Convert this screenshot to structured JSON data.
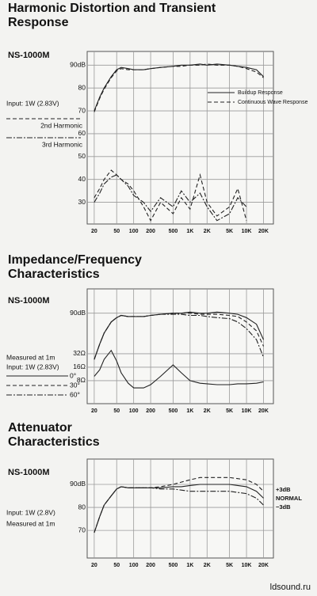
{
  "chart_data": [
    {
      "type": "line",
      "title": "Harmonic Distortion and Transient Response",
      "model": "NS-1000M",
      "notes": [
        "Input: 1W (2.83V)"
      ],
      "xlog": true,
      "xlim": [
        15,
        30000
      ],
      "xticks": [
        20,
        50,
        100,
        200,
        500,
        {
          "value": 1000,
          "label": "1K"
        },
        {
          "value": 2000,
          "label": "2K"
        },
        {
          "value": 5000,
          "label": "5K"
        },
        {
          "value": 10000,
          "label": "10K"
        },
        {
          "value": 20000,
          "label": "20K"
        }
      ],
      "ylim": [
        20.5,
        96
      ],
      "yticks": [
        {
          "value": 90,
          "label": "90dB"
        },
        80,
        70,
        60,
        50,
        40,
        30
      ],
      "grid": true,
      "x": [
        20,
        25,
        30,
        40,
        50,
        60,
        80,
        100,
        150,
        200,
        300,
        500,
        700,
        1000,
        1500,
        2000,
        3000,
        5000,
        7000,
        10000,
        15000,
        20000
      ],
      "series": [
        {
          "name": "Buildup Response",
          "color": "#222222",
          "dash": "solid",
          "legend": "inside",
          "values": [
            70,
            76,
            80,
            85,
            88,
            89,
            88.5,
            88,
            88,
            88.5,
            89,
            89.5,
            90,
            90,
            90.5,
            90,
            90.5,
            90,
            89.5,
            89,
            88,
            85
          ]
        },
        {
          "name": "Continuous Wave Response",
          "color": "#222222",
          "dash": "dashed",
          "legend": "inside",
          "values": [
            69.5,
            75.5,
            79.5,
            84.5,
            87.5,
            88.5,
            88,
            88,
            88,
            88.5,
            89,
            89.5,
            89.5,
            90,
            90,
            90.5,
            90,
            90,
            89.5,
            88.5,
            87,
            84.5
          ]
        },
        {
          "name": "2nd Harmonic",
          "color": "#222222",
          "dash": "dashed",
          "legend": "left",
          "values": [
            32,
            36,
            40,
            44,
            42,
            40,
            38,
            35,
            28,
            22,
            30,
            25,
            32,
            27,
            42,
            30,
            24,
            28,
            36,
            22,
            null,
            null
          ]
        },
        {
          "name": "3rd Harmonic",
          "color": "#222222",
          "dash": "dashdot",
          "legend": "left",
          "values": [
            30,
            34,
            38,
            41,
            42,
            40,
            37,
            33,
            30,
            26,
            32,
            28,
            35,
            30,
            34,
            28,
            22,
            25,
            32,
            28,
            null,
            null
          ]
        }
      ]
    },
    {
      "type": "line",
      "title": "Impedance/Frequency Characteristics",
      "model": "NS-1000M",
      "notes": [
        "Measured at 1m",
        "Input: 1W (2.83V)"
      ],
      "xlog": true,
      "xlim": [
        15,
        30000
      ],
      "xticks": [
        20,
        50,
        100,
        200,
        500,
        {
          "value": 1000,
          "label": "1K"
        },
        {
          "value": 2000,
          "label": "2K"
        },
        {
          "value": 5000,
          "label": "5K"
        },
        {
          "value": 10000,
          "label": "10K"
        },
        {
          "value": 20000,
          "label": "20K"
        }
      ],
      "ylim": [
        49,
        101
      ],
      "yticks": [
        {
          "value": 90,
          "label": "90dB"
        }
      ],
      "y2log": true,
      "y2lim": [
        2.45,
        900
      ],
      "y2ticks": [
        {
          "value": 32,
          "label": "32Ω"
        },
        {
          "value": 16,
          "label": "16Ω"
        },
        {
          "value": 8,
          "label": "8Ω"
        }
      ],
      "grid": true,
      "x": [
        20,
        25,
        30,
        40,
        50,
        60,
        80,
        100,
        150,
        200,
        300,
        500,
        700,
        1000,
        1500,
        2000,
        3000,
        5000,
        7000,
        10000,
        15000,
        20000
      ],
      "series": [
        {
          "name": "0°",
          "color": "#222222",
          "dash": "solid",
          "legend": "left",
          "values": [
            69,
            76,
            81,
            86,
            88,
            89,
            88.5,
            88.5,
            88.5,
            89,
            89.5,
            90,
            90,
            90.5,
            90,
            90,
            90.5,
            90,
            89.5,
            88,
            85,
            78
          ]
        },
        {
          "name": "30°",
          "color": "#222222",
          "dash": "dashed",
          "legend": "left",
          "values": [
            69,
            76,
            81,
            86,
            88,
            89,
            88.5,
            88.5,
            88.5,
            89,
            89.5,
            90,
            90,
            90,
            89.5,
            89.5,
            89.5,
            89,
            88.5,
            86,
            82,
            75
          ]
        },
        {
          "name": "60°",
          "color": "#222222",
          "dash": "dashdot",
          "legend": "left",
          "values": [
            69,
            76,
            81,
            86,
            88,
            89,
            88.5,
            88.5,
            88.5,
            89,
            89.5,
            89.5,
            89.5,
            89,
            89,
            88.5,
            88,
            87.5,
            86,
            83,
            78,
            70
          ]
        },
        {
          "color": "#222222",
          "dash": "solid",
          "axis": "y2",
          "values": [
            10,
            14,
            24,
            38,
            22,
            12,
            7,
            5.5,
            5.5,
            6.5,
            10,
            18,
            12,
            8,
            7,
            6.8,
            6.5,
            6.5,
            6.8,
            6.8,
            7,
            7.5
          ]
        }
      ]
    },
    {
      "type": "line",
      "title": "Attenuator Characteristics",
      "model": "NS-1000M",
      "notes": [
        "Input: 1W (2.8V)",
        "Measured at 1m"
      ],
      "xlog": true,
      "xlim": [
        15,
        30000
      ],
      "xticks": [
        20,
        50,
        100,
        200,
        500,
        {
          "value": 1000,
          "label": "1K"
        },
        {
          "value": 2000,
          "label": "2K"
        },
        {
          "value": 5000,
          "label": "5K"
        },
        {
          "value": 10000,
          "label": "10K"
        },
        {
          "value": 20000,
          "label": "20K"
        }
      ],
      "ylim": [
        58,
        101
      ],
      "yticks": [
        {
          "value": 90,
          "label": "90dB"
        },
        80,
        70
      ],
      "grid": true,
      "x": [
        20,
        25,
        30,
        40,
        50,
        60,
        80,
        100,
        150,
        200,
        300,
        500,
        700,
        1000,
        1500,
        2000,
        3000,
        5000,
        7000,
        10000,
        15000,
        20000
      ],
      "series": [
        {
          "name": "+3dB",
          "color": "#222222",
          "dash": "dashed",
          "legend": "right",
          "values": [
            69,
            76,
            81,
            85,
            88,
            89,
            88.5,
            88.5,
            88.5,
            88.5,
            89,
            90,
            91,
            92,
            93,
            93,
            93,
            93,
            92.5,
            92,
            90,
            87
          ]
        },
        {
          "name": "NORMAL",
          "color": "#222222",
          "dash": "solid",
          "legend": "right",
          "values": [
            69,
            76,
            81,
            85,
            88,
            89,
            88.5,
            88.5,
            88.5,
            88.5,
            88.5,
            89,
            89,
            89.5,
            90,
            90,
            90,
            90,
            89.5,
            89,
            87,
            84
          ]
        },
        {
          "name": "−3dB",
          "color": "#222222",
          "dash": "dashdot",
          "legend": "right",
          "values": [
            69,
            76,
            81,
            85,
            88,
            89,
            88.5,
            88.5,
            88.5,
            88.5,
            88,
            88,
            87.5,
            87,
            87,
            87,
            87,
            87,
            86.5,
            86,
            84,
            81
          ]
        }
      ]
    }
  ],
  "footer": "ldsound.ru"
}
